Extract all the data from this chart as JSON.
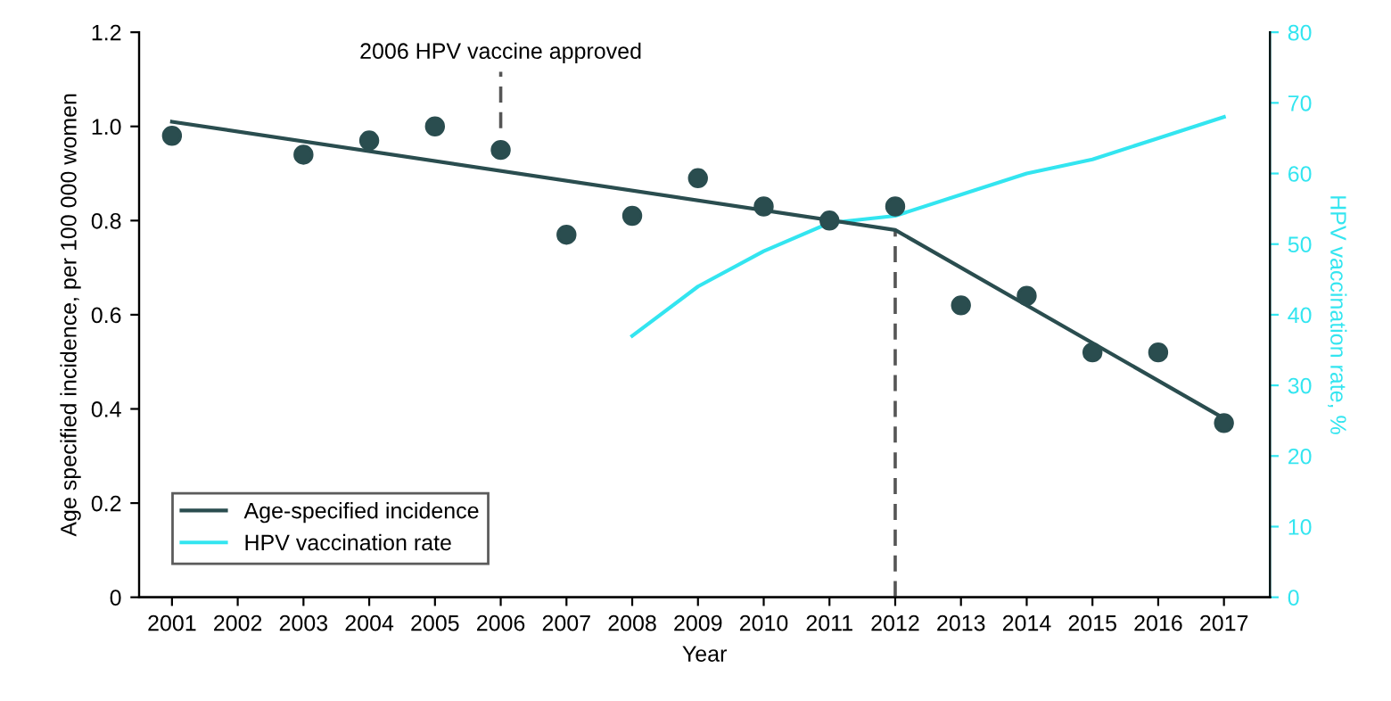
{
  "chart_data": {
    "type": "scatter",
    "xlabel": "Year",
    "ylabel": "Age specified incidence, per 100 000 women",
    "y2label": "HPV vaccination rate, %",
    "xlim": [
      2000.5,
      2017.7
    ],
    "xticks": [
      2001,
      2002,
      2003,
      2004,
      2005,
      2006,
      2007,
      2008,
      2009,
      2010,
      2011,
      2012,
      2013,
      2014,
      2015,
      2016,
      2017
    ],
    "ylim": [
      0,
      1.2
    ],
    "yticks": [
      0,
      {
        "value": 0.2,
        "label": "0.2"
      },
      {
        "value": 0.4,
        "label": "0.4"
      },
      {
        "value": 0.6,
        "label": "0.6"
      },
      {
        "value": 0.8,
        "label": "0.8"
      },
      {
        "value": 1.0,
        "label": "1.0"
      },
      {
        "value": 1.2,
        "label": "1.2"
      }
    ],
    "y2lim": [
      0,
      80
    ],
    "y2ticks": [
      0,
      10,
      20,
      30,
      40,
      50,
      60,
      70,
      80
    ],
    "grid": false,
    "legend": "bottom left",
    "series": [
      {
        "color": "#2a4d4f",
        "marker": "circle",
        "x": [
          2001,
          2003,
          2004,
          2005,
          2006,
          2007,
          2008,
          2009,
          2010,
          2011,
          2012,
          2013,
          2014,
          2015,
          2016,
          2017
        ],
        "values": [
          0.98,
          0.94,
          0.97,
          1.0,
          0.95,
          0.77,
          0.81,
          0.89,
          0.83,
          0.8,
          0.83,
          0.62,
          0.64,
          0.52,
          0.52,
          0.37
        ]
      },
      {
        "type": "line",
        "name": "Age-specified incidence",
        "color": "#2a4d4f",
        "x": [
          2001,
          2012,
          2017
        ],
        "values": [
          1.01,
          0.78,
          0.38
        ]
      },
      {
        "type": "line",
        "name": "HPV vaccination rate",
        "color": "#33e5f0",
        "axis": "y2",
        "x": [
          2008,
          2009,
          2010,
          2011,
          2012,
          2013,
          2014,
          2015,
          2016,
          2017
        ],
        "values": [
          37,
          44,
          49,
          53,
          54,
          57,
          60,
          62,
          65,
          68
        ]
      }
    ],
    "ref_lines": [
      {
        "axis": "x",
        "value": 2012,
        "color": "#555555",
        "line_style": "dashed"
      },
      {
        "axis": "x",
        "value": 2006,
        "label": "2006 HPV vaccine approved",
        "color": "#555555",
        "line_style": "dashed"
      }
    ]
  }
}
